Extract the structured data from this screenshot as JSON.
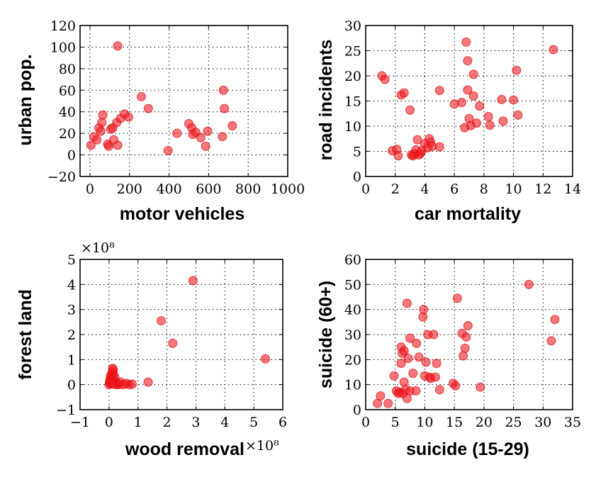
{
  "chart_data": [
    {
      "type": "scatter",
      "xlabel": "motor vehicles",
      "ylabel": "urban pop.",
      "xlim": [
        -50,
        1000
      ],
      "ylim": [
        -20,
        120
      ],
      "xticks": [
        0,
        200,
        400,
        600,
        800,
        1000
      ],
      "xtick_labels": [
        "0",
        "200",
        "400",
        "600",
        "800",
        "1000"
      ],
      "yticks": [
        -20,
        0,
        20,
        40,
        60,
        80,
        100,
        120
      ],
      "ytick_labels": [
        "−20",
        "0",
        "20",
        "40",
        "60",
        "80",
        "100",
        "120"
      ],
      "multiplier": "",
      "grid": true,
      "color": "#e8141c",
      "x": [
        5,
        20,
        35,
        45,
        55,
        60,
        65,
        90,
        95,
        105,
        115,
        120,
        135,
        140,
        155,
        175,
        195,
        140,
        260,
        295,
        395,
        440,
        500,
        515,
        520,
        535,
        560,
        585,
        595,
        670,
        675,
        680,
        720
      ],
      "y": [
        9,
        17,
        14,
        25,
        22,
        30,
        37,
        10,
        8,
        24,
        25,
        14,
        30,
        101,
        34,
        38,
        35,
        9,
        54,
        43,
        4,
        20,
        29,
        25,
        19,
        21,
        16,
        8,
        22,
        17,
        60,
        43,
        27
      ]
    },
    {
      "type": "scatter",
      "xlabel": "car mortality",
      "ylabel": "road incidents",
      "xlim": [
        0,
        14
      ],
      "ylim": [
        0,
        30
      ],
      "xticks": [
        0,
        2,
        4,
        6,
        8,
        10,
        12,
        14
      ],
      "xtick_labels": [
        "0",
        "2",
        "4",
        "6",
        "8",
        "10",
        "12",
        "14"
      ],
      "yticks": [
        0,
        5,
        10,
        15,
        20,
        25,
        30
      ],
      "ytick_labels": [
        "0",
        "5",
        "10",
        "15",
        "20",
        "25",
        "30"
      ],
      "multiplier": "",
      "grid": true,
      "color": "#e8141c",
      "x": [
        1.1,
        1.3,
        1.8,
        2.1,
        2.2,
        2.4,
        2.6,
        3.0,
        3.1,
        3.2,
        3.3,
        3.4,
        3.5,
        3.6,
        3.7,
        3.8,
        4.0,
        4.2,
        4.3,
        4.4,
        4.5,
        5.0,
        5.0,
        6.0,
        6.5,
        6.7,
        6.8,
        6.9,
        6.9,
        7.0,
        7.1,
        7.3,
        7.3,
        7.5,
        7.7,
        8.3,
        8.4,
        9.2,
        9.3,
        10.0,
        10.2,
        10.3,
        12.7
      ],
      "y": [
        20.0,
        19.3,
        5.1,
        5.4,
        4.1,
        16.2,
        16.6,
        13.2,
        4.3,
        4.1,
        4.5,
        5.3,
        7.3,
        4.3,
        4.6,
        5.1,
        6.5,
        5.7,
        7.5,
        6.8,
        6.0,
        17.1,
        5.9,
        14.4,
        14.7,
        9.7,
        26.7,
        23.0,
        17.2,
        11.5,
        10.1,
        16.0,
        20.3,
        10.6,
        14.0,
        11.9,
        10.2,
        15.3,
        11.0,
        15.2,
        21.1,
        12.2,
        25.2
      ]
    },
    {
      "type": "scatter",
      "xlabel": "wood removal",
      "ylabel": "forest land",
      "xlim": [
        -1,
        6
      ],
      "ylim": [
        -1,
        5
      ],
      "xticks": [
        -1,
        0,
        1,
        2,
        3,
        4,
        5,
        6
      ],
      "xtick_labels": [
        "−1",
        "0",
        "1",
        "2",
        "3",
        "4",
        "5",
        "6"
      ],
      "yticks": [
        -1,
        0,
        1,
        2,
        3,
        4,
        5
      ],
      "ytick_labels": [
        "−1",
        "0",
        "1",
        "2",
        "3",
        "4",
        "5"
      ],
      "multiplier": "×10⁸",
      "grid": true,
      "color": "#e8141c",
      "x": [
        0.0,
        0.02,
        0.05,
        0.08,
        0.1,
        0.12,
        0.15,
        0.18,
        0.2,
        0.22,
        0.25,
        0.3,
        0.35,
        0.4,
        0.5,
        0.6,
        0.7,
        0.8,
        0.05,
        0.1,
        0.15,
        0.08,
        0.12,
        0.2,
        0.03,
        0.06,
        0.14,
        1.35,
        1.8,
        2.2,
        2.9,
        5.4
      ],
      "y": [
        0.0,
        0.1,
        0.05,
        0.2,
        0.3,
        0.5,
        0.6,
        0.15,
        0.05,
        0.1,
        0.0,
        0.05,
        0.0,
        0.1,
        0.0,
        0.05,
        0.0,
        0.02,
        0.35,
        0.45,
        0.4,
        0.25,
        0.65,
        0.3,
        0.2,
        0.1,
        0.02,
        0.1,
        2.55,
        1.65,
        4.15,
        1.03
      ]
    },
    {
      "type": "scatter",
      "xlabel": "suicide (15-29)",
      "ylabel": "suicide (60+)",
      "xlim": [
        0,
        35
      ],
      "ylim": [
        0,
        60
      ],
      "xticks": [
        0,
        5,
        10,
        15,
        20,
        25,
        30,
        35
      ],
      "xtick_labels": [
        "0",
        "5",
        "10",
        "15",
        "20",
        "25",
        "30",
        "35"
      ],
      "yticks": [
        0,
        10,
        20,
        30,
        40,
        50,
        60
      ],
      "ytick_labels": [
        "0",
        "10",
        "20",
        "30",
        "40",
        "50",
        "60"
      ],
      "multiplier": "",
      "grid": true,
      "color": "#e8141c",
      "x": [
        2.0,
        2.5,
        3.8,
        4.8,
        5.2,
        5.5,
        5.8,
        6.0,
        6.0,
        6.2,
        6.3,
        6.5,
        6.5,
        6.8,
        7.0,
        7.0,
        7.2,
        7.5,
        7.5,
        8.0,
        8.5,
        8.6,
        9.0,
        9.7,
        9.8,
        10.0,
        10.2,
        10.5,
        10.8,
        11.0,
        11.5,
        11.8,
        12.0,
        12.5,
        14.8,
        15.2,
        15.5,
        16.3,
        16.5,
        16.8,
        17.0,
        17.3,
        19.4,
        27.6,
        31.4,
        32.0
      ],
      "y": [
        2.5,
        5.5,
        2.5,
        13.5,
        7.5,
        6.5,
        7.0,
        25.0,
        18.5,
        22.5,
        6.5,
        11.0,
        23.5,
        8.0,
        4.5,
        42.5,
        20.5,
        28.5,
        7.5,
        14.5,
        7.5,
        26.5,
        21.0,
        37.0,
        40.0,
        13.5,
        19.0,
        30.0,
        13.0,
        12.5,
        30.0,
        13.0,
        18.5,
        8.0,
        10.5,
        9.5,
        44.5,
        30.5,
        21.5,
        24.5,
        29.0,
        33.5,
        9.0,
        50.0,
        27.5,
        36.0
      ]
    }
  ]
}
